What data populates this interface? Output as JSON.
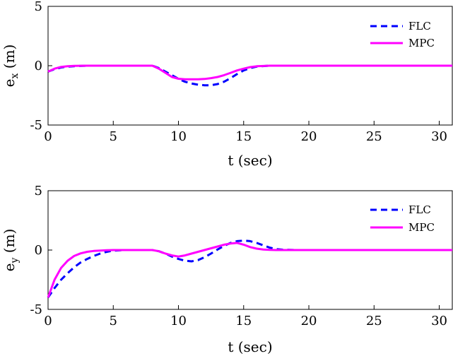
{
  "chart_data": [
    {
      "type": "line",
      "xlabel": "t (sec)",
      "ylabel_main": "e",
      "ylabel_sub": "x",
      "ylabel_unit": " (m)",
      "xlim": [
        0,
        31
      ],
      "ylim": [
        -5,
        5
      ],
      "xticks": [
        0,
        5,
        10,
        15,
        20,
        25,
        30
      ],
      "yticks": [
        -5,
        0,
        5
      ],
      "legend_position": "top-right",
      "series": [
        {
          "name": "FLC",
          "color": "#0000ff",
          "style": "dashed",
          "x": [
            0,
            0.5,
            1,
            1.5,
            2,
            3,
            4,
            5,
            6,
            7,
            8,
            8.5,
            9,
            9.5,
            10,
            10.5,
            11,
            11.5,
            12,
            12.5,
            13,
            13.5,
            14,
            14.5,
            15,
            15.5,
            16,
            17,
            18,
            20,
            25,
            31
          ],
          "y": [
            -0.5,
            -0.3,
            -0.15,
            -0.08,
            -0.04,
            0,
            0,
            0,
            0,
            0,
            0,
            -0.2,
            -0.5,
            -0.8,
            -1.1,
            -1.35,
            -1.5,
            -1.6,
            -1.65,
            -1.65,
            -1.55,
            -1.35,
            -1.05,
            -0.7,
            -0.4,
            -0.2,
            -0.08,
            0,
            0,
            0,
            0,
            0
          ]
        },
        {
          "name": "MPC",
          "color": "#ff00ff",
          "style": "solid",
          "x": [
            0,
            0.5,
            1,
            1.5,
            2,
            3,
            4,
            5,
            6,
            7,
            8,
            8.5,
            9,
            9.5,
            10,
            10.5,
            11,
            11.5,
            12,
            12.5,
            13,
            13.5,
            14,
            14.5,
            15,
            15.5,
            16,
            17,
            18,
            20,
            25,
            31
          ],
          "y": [
            -0.5,
            -0.25,
            -0.1,
            -0.05,
            -0.02,
            0,
            0,
            0,
            0,
            0,
            0,
            -0.25,
            -0.6,
            -0.95,
            -1.1,
            -1.15,
            -1.15,
            -1.15,
            -1.12,
            -1.05,
            -0.95,
            -0.8,
            -0.6,
            -0.4,
            -0.25,
            -0.12,
            -0.05,
            0,
            0,
            0,
            0,
            0
          ]
        }
      ]
    },
    {
      "type": "line",
      "xlabel": "t (sec)",
      "ylabel_main": "e",
      "ylabel_sub": "y",
      "ylabel_unit": " (m)",
      "xlim": [
        0,
        31
      ],
      "ylim": [
        -5,
        5
      ],
      "xticks": [
        0,
        5,
        10,
        15,
        20,
        25,
        30
      ],
      "yticks": [
        -5,
        0,
        5
      ],
      "legend_position": "top-right",
      "series": [
        {
          "name": "FLC",
          "color": "#0000ff",
          "style": "dashed",
          "x": [
            0,
            0.5,
            1,
            1.5,
            2,
            2.5,
            3,
            3.5,
            4,
            4.5,
            5,
            6,
            7,
            8,
            8.5,
            9,
            9.5,
            10,
            10.5,
            11,
            11.5,
            12,
            12.5,
            13,
            13.5,
            14,
            14.5,
            15,
            15.5,
            16,
            16.5,
            17,
            17.5,
            18,
            19,
            20,
            25,
            31
          ],
          "y": [
            -4,
            -3.2,
            -2.5,
            -1.95,
            -1.45,
            -1.05,
            -0.75,
            -0.5,
            -0.3,
            -0.15,
            -0.05,
            0,
            0,
            0,
            -0.1,
            -0.3,
            -0.55,
            -0.75,
            -0.9,
            -0.95,
            -0.85,
            -0.6,
            -0.3,
            0.05,
            0.35,
            0.6,
            0.75,
            0.8,
            0.75,
            0.6,
            0.4,
            0.2,
            0.08,
            0.03,
            0,
            0,
            0,
            0
          ]
        },
        {
          "name": "MPC",
          "color": "#ff00ff",
          "style": "solid",
          "x": [
            0,
            0.5,
            1,
            1.5,
            2,
            2.5,
            3,
            3.5,
            4,
            4.5,
            5,
            6,
            7,
            8,
            8.5,
            9,
            9.5,
            10,
            10.5,
            11,
            11.5,
            12,
            12.5,
            13,
            13.5,
            14,
            14.5,
            15,
            15.5,
            16,
            16.5,
            17,
            17.5,
            18,
            19,
            20,
            25,
            31
          ],
          "y": [
            -4,
            -2.5,
            -1.5,
            -0.9,
            -0.5,
            -0.28,
            -0.15,
            -0.08,
            -0.04,
            -0.02,
            0,
            0,
            0,
            0,
            -0.1,
            -0.3,
            -0.45,
            -0.55,
            -0.45,
            -0.3,
            -0.15,
            0,
            0.15,
            0.3,
            0.45,
            0.55,
            0.6,
            0.45,
            0.25,
            0.12,
            0.05,
            0.02,
            0,
            0,
            0,
            0,
            0,
            0
          ]
        }
      ]
    }
  ]
}
